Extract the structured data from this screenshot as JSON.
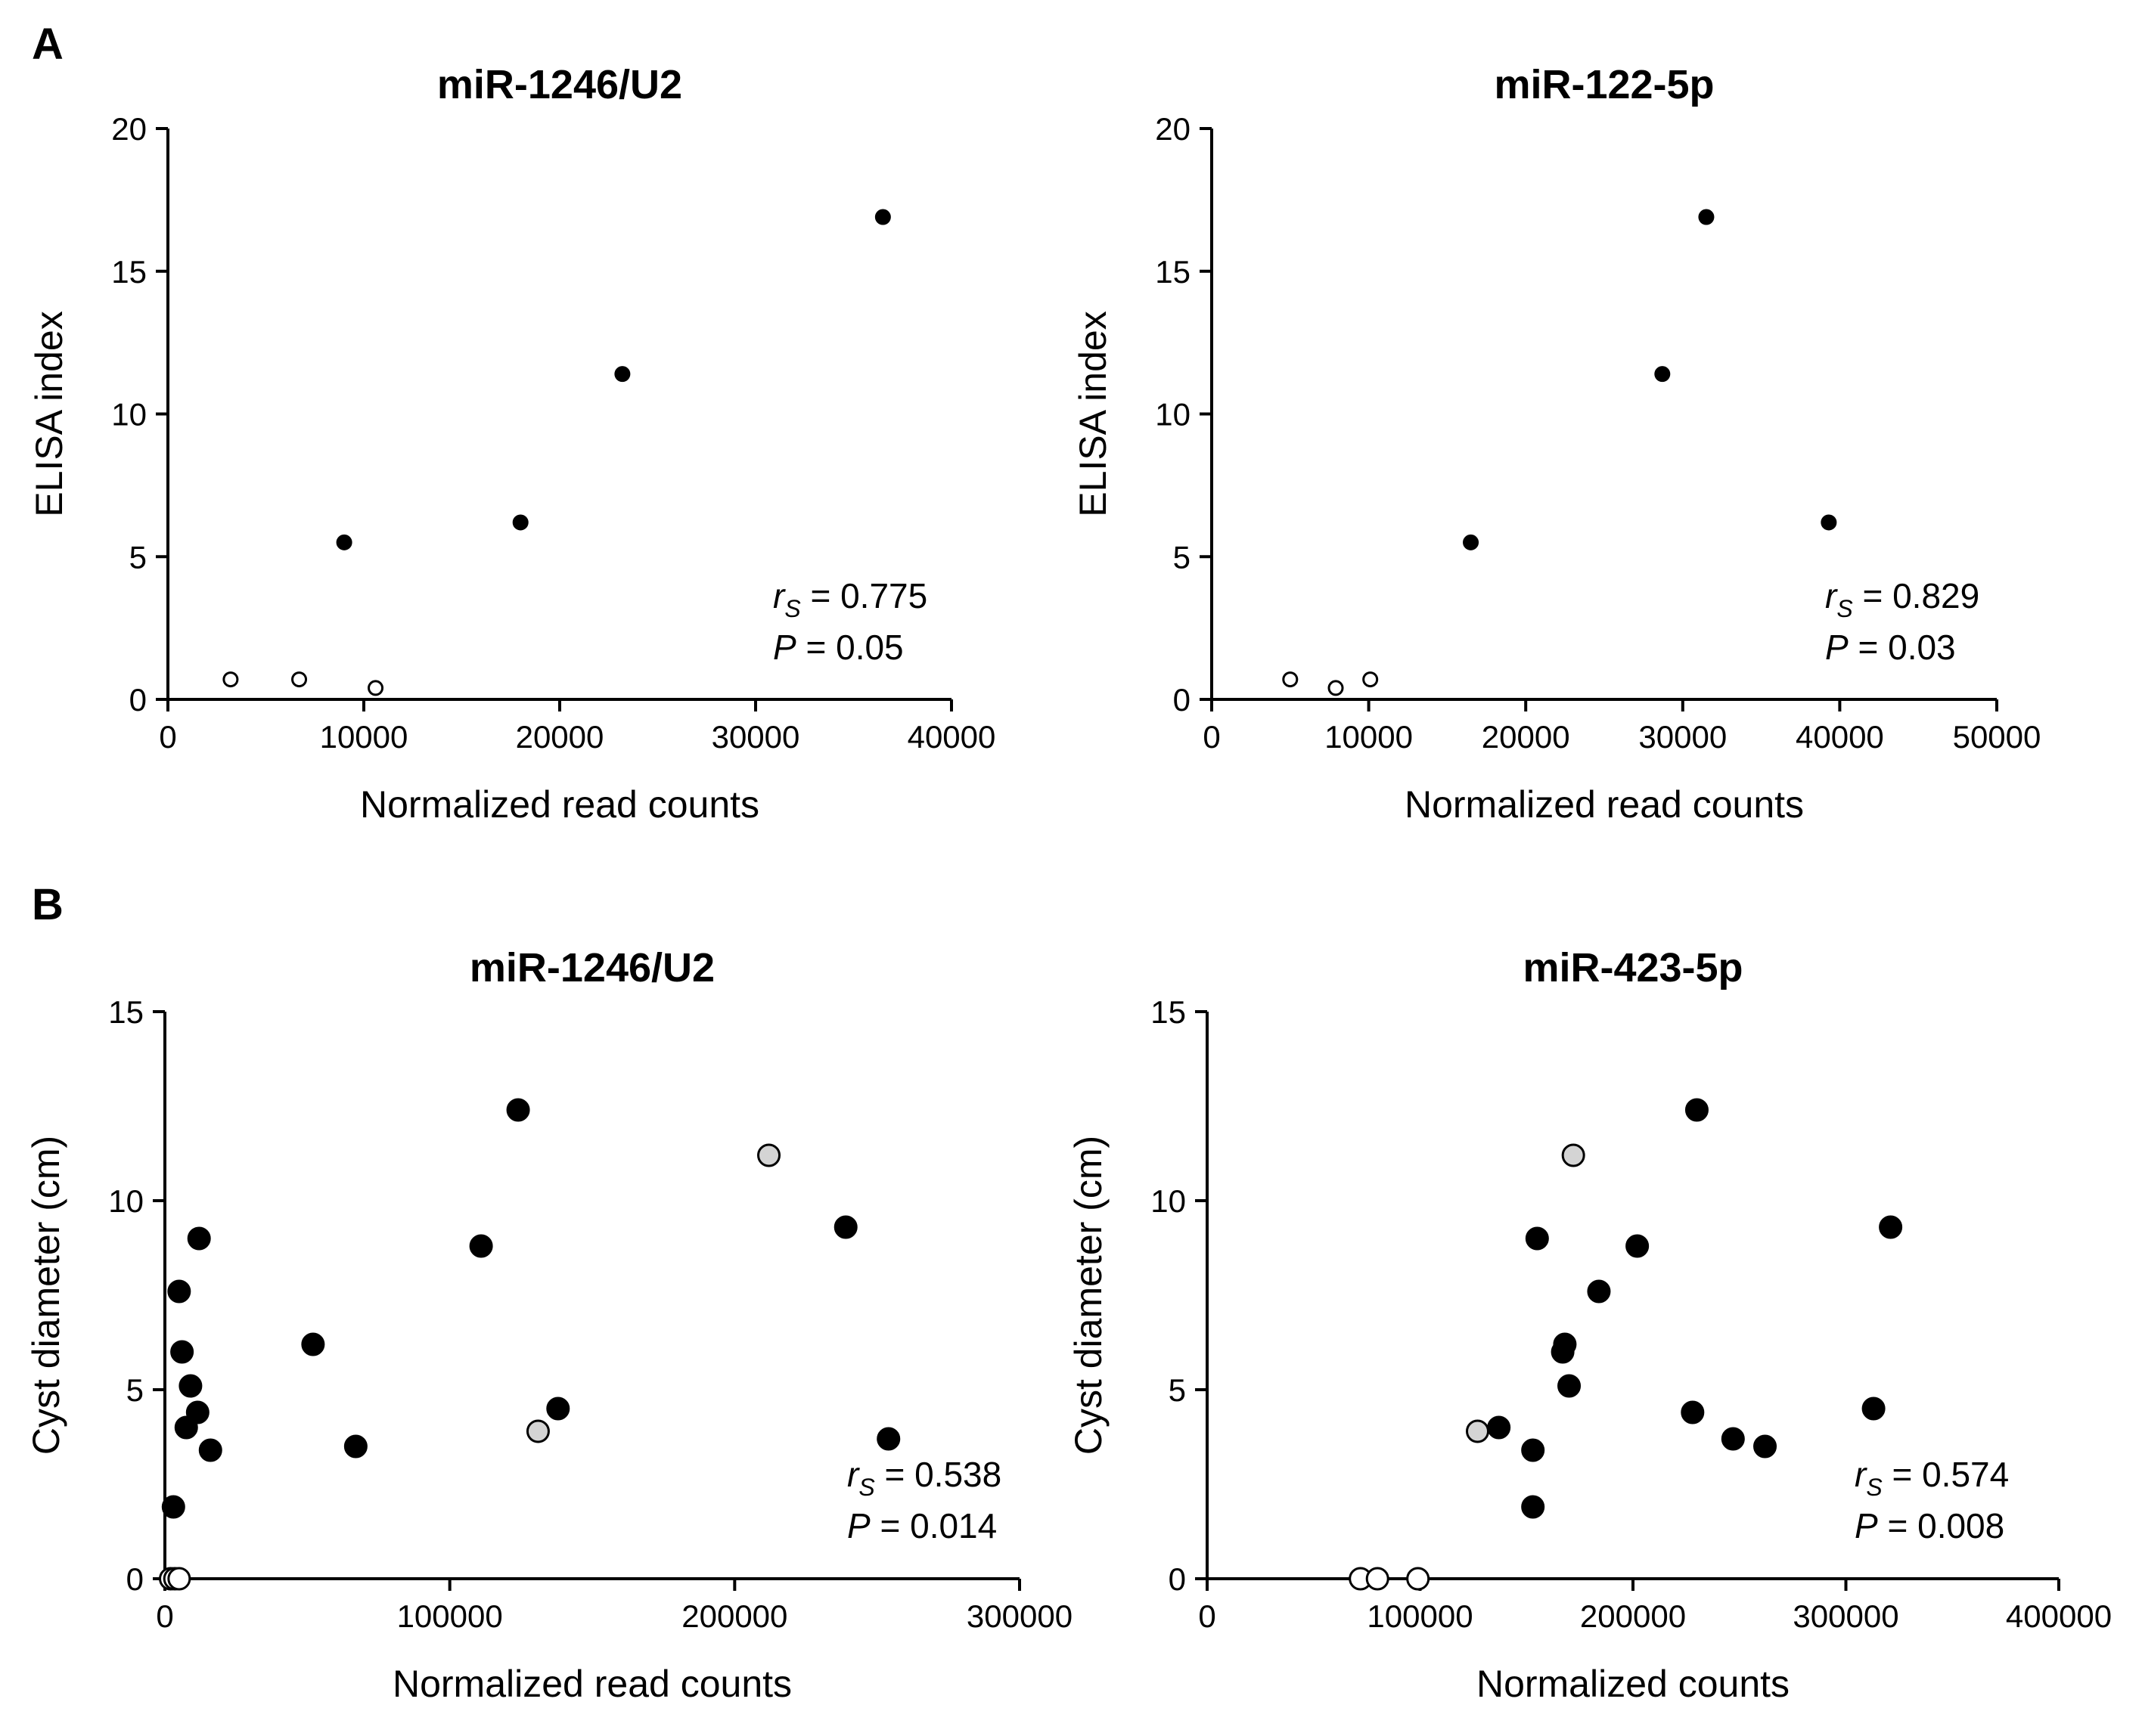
{
  "panel_labels": [
    "A",
    "B"
  ],
  "chart_data": [
    {
      "type": "scatter",
      "title": "miR-1246/U2",
      "xlabel": "Normalized read counts",
      "ylabel": "ELISA index",
      "xlim": [
        0,
        40000
      ],
      "ylim": [
        0,
        20
      ],
      "xticks": [
        0,
        10000,
        20000,
        30000,
        40000
      ],
      "yticks": [
        0,
        5,
        10,
        15,
        20
      ],
      "stat_r": "0.775",
      "stat_p": "0.05",
      "points": [
        {
          "x": 3200,
          "y": 0.7,
          "group": "open"
        },
        {
          "x": 6700,
          "y": 0.7,
          "group": "open"
        },
        {
          "x": 10600,
          "y": 0.4,
          "group": "open"
        },
        {
          "x": 9000,
          "y": 5.5,
          "group": "filled"
        },
        {
          "x": 18000,
          "y": 6.2,
          "group": "filled"
        },
        {
          "x": 23200,
          "y": 11.4,
          "group": "filled"
        },
        {
          "x": 36500,
          "y": 16.9,
          "group": "filled"
        }
      ]
    },
    {
      "type": "scatter",
      "title": "miR-122-5p",
      "xlabel": "Normalized read counts",
      "ylabel": "ELISA index",
      "xlim": [
        0,
        50000
      ],
      "ylim": [
        0,
        20
      ],
      "xticks": [
        0,
        10000,
        20000,
        30000,
        40000,
        50000
      ],
      "yticks": [
        0,
        5,
        10,
        15,
        20
      ],
      "stat_r": "0.829",
      "stat_p": "0.03",
      "points": [
        {
          "x": 5000,
          "y": 0.7,
          "group": "open"
        },
        {
          "x": 7900,
          "y": 0.4,
          "group": "open"
        },
        {
          "x": 10100,
          "y": 0.7,
          "group": "open"
        },
        {
          "x": 16500,
          "y": 5.5,
          "group": "filled"
        },
        {
          "x": 28700,
          "y": 11.4,
          "group": "filled"
        },
        {
          "x": 31500,
          "y": 16.9,
          "group": "filled"
        },
        {
          "x": 39300,
          "y": 6.2,
          "group": "filled"
        }
      ]
    },
    {
      "type": "scatter",
      "title": "miR-1246/U2",
      "xlabel": "Normalized read counts",
      "ylabel": "Cyst diameter (cm)",
      "xlim": [
        0,
        300000
      ],
      "ylim": [
        0,
        15
      ],
      "xticks": [
        0,
        100000,
        200000,
        300000
      ],
      "yticks": [
        0,
        5,
        10,
        15
      ],
      "stat_r": "0.538",
      "stat_p": "0.014",
      "points": [
        {
          "x": 2000,
          "y": 0,
          "group": "open"
        },
        {
          "x": 3500,
          "y": 0,
          "group": "open"
        },
        {
          "x": 5000,
          "y": 0,
          "group": "open"
        },
        {
          "x": 3000,
          "y": 1.9,
          "group": "filled"
        },
        {
          "x": 5000,
          "y": 7.6,
          "group": "filled"
        },
        {
          "x": 6000,
          "y": 6.0,
          "group": "filled"
        },
        {
          "x": 7500,
          "y": 4.0,
          "group": "filled"
        },
        {
          "x": 9000,
          "y": 5.1,
          "group": "filled"
        },
        {
          "x": 11500,
          "y": 4.4,
          "group": "filled"
        },
        {
          "x": 12000,
          "y": 9.0,
          "group": "filled"
        },
        {
          "x": 16000,
          "y": 3.4,
          "group": "filled"
        },
        {
          "x": 52000,
          "y": 6.2,
          "group": "filled"
        },
        {
          "x": 67000,
          "y": 3.5,
          "group": "filled"
        },
        {
          "x": 111000,
          "y": 8.8,
          "group": "filled"
        },
        {
          "x": 124000,
          "y": 12.4,
          "group": "filled"
        },
        {
          "x": 138000,
          "y": 4.5,
          "group": "filled"
        },
        {
          "x": 239000,
          "y": 9.3,
          "group": "filled"
        },
        {
          "x": 254000,
          "y": 3.7,
          "group": "filled"
        },
        {
          "x": 131000,
          "y": 3.9,
          "group": "gray"
        },
        {
          "x": 212000,
          "y": 11.2,
          "group": "gray"
        }
      ]
    },
    {
      "type": "scatter",
      "title": "miR-423-5p",
      "xlabel": "Normalized counts",
      "ylabel": "Cyst diameter (cm)",
      "xlim": [
        0,
        400000
      ],
      "ylim": [
        0,
        15
      ],
      "xticks": [
        0,
        100000,
        200000,
        300000,
        400000
      ],
      "yticks": [
        0,
        5,
        10,
        15
      ],
      "stat_r": "0.574",
      "stat_p": "0.008",
      "points": [
        {
          "x": 72000,
          "y": 0,
          "group": "open"
        },
        {
          "x": 80000,
          "y": 0,
          "group": "open"
        },
        {
          "x": 99000,
          "y": 0,
          "group": "open"
        },
        {
          "x": 127000,
          "y": 3.9,
          "group": "gray"
        },
        {
          "x": 172000,
          "y": 11.2,
          "group": "gray"
        },
        {
          "x": 137000,
          "y": 4.0,
          "group": "filled"
        },
        {
          "x": 153000,
          "y": 3.4,
          "group": "filled"
        },
        {
          "x": 153000,
          "y": 1.9,
          "group": "filled"
        },
        {
          "x": 155000,
          "y": 9.0,
          "group": "filled"
        },
        {
          "x": 167000,
          "y": 6.0,
          "group": "filled"
        },
        {
          "x": 168000,
          "y": 6.2,
          "group": "filled"
        },
        {
          "x": 170000,
          "y": 5.1,
          "group": "filled"
        },
        {
          "x": 184000,
          "y": 7.6,
          "group": "filled"
        },
        {
          "x": 202000,
          "y": 8.8,
          "group": "filled"
        },
        {
          "x": 228000,
          "y": 4.4,
          "group": "filled"
        },
        {
          "x": 230000,
          "y": 12.4,
          "group": "filled"
        },
        {
          "x": 247000,
          "y": 3.7,
          "group": "filled"
        },
        {
          "x": 262000,
          "y": 3.5,
          "group": "filled"
        },
        {
          "x": 313000,
          "y": 4.5,
          "group": "filled"
        },
        {
          "x": 321000,
          "y": 9.3,
          "group": "filled"
        }
      ]
    }
  ]
}
